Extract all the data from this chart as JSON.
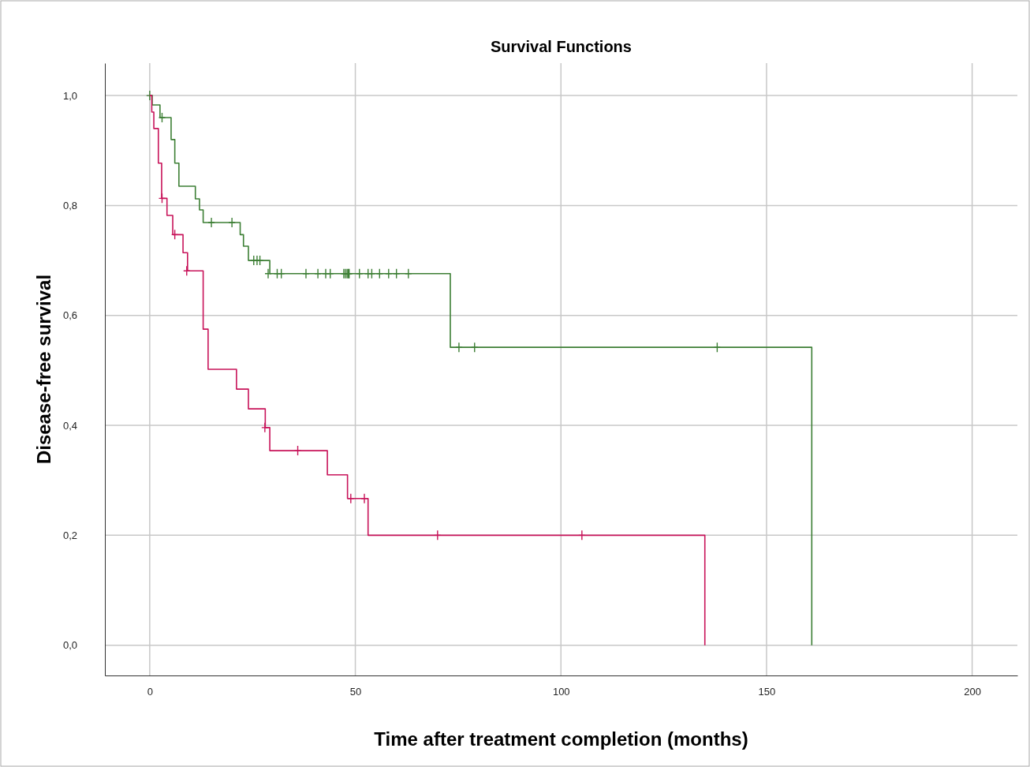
{
  "chart_data": {
    "type": "step",
    "title": "Survival Functions",
    "xlabel": "Time after treatment completion (months)",
    "ylabel": "Disease-free survival",
    "xlim": [
      -10.9,
      211
    ],
    "ylim": [
      -0.055,
      1.059
    ],
    "xticks": [
      0,
      50,
      100,
      150,
      200
    ],
    "yticks": [
      {
        "value": 0,
        "label": "0,0"
      },
      {
        "value": 0.2,
        "label": "0,2"
      },
      {
        "value": 0.4,
        "label": "0,4"
      },
      {
        "value": 0.6,
        "label": "0,6"
      },
      {
        "value": 0.8,
        "label": "0,8"
      },
      {
        "value": 1,
        "label": "1,0"
      }
    ],
    "grid": true,
    "series": [
      {
        "color": "#3d7f35",
        "x": [
          0,
          0.6,
          2.5,
          5.2,
          6.1,
          7.1,
          11.1,
          12.1,
          13,
          22,
          22.8,
          24,
          29.2,
          73.1,
          161
        ],
        "values": [
          1,
          0.983,
          0.96,
          0.92,
          0.877,
          0.835,
          0.812,
          0.792,
          0.769,
          0.747,
          0.726,
          0.7,
          0.676,
          0.542,
          0
        ]
      },
      {
        "type": "scatter",
        "marker": "cross",
        "color": "#3d7f35",
        "x": [
          0,
          3,
          15,
          20,
          25.3,
          26.1,
          26.8,
          28.8,
          31,
          32,
          38,
          40.9,
          42.8,
          43.9,
          47.2,
          47.6,
          48,
          48.3,
          48.5,
          51,
          53.1,
          54,
          55.9,
          58.1,
          60,
          62.9,
          75.2,
          79,
          138
        ],
        "values": [
          1,
          0.96,
          0.769,
          0.769,
          0.7,
          0.7,
          0.7,
          0.676,
          0.676,
          0.676,
          0.676,
          0.676,
          0.676,
          0.676,
          0.676,
          0.676,
          0.676,
          0.676,
          0.676,
          0.676,
          0.676,
          0.676,
          0.676,
          0.676,
          0.676,
          0.676,
          0.542,
          0.542,
          0.542
        ]
      },
      {
        "color": "#c8145a",
        "x": [
          0,
          0.5,
          1,
          2.1,
          2.9,
          4.2,
          5.6,
          8.1,
          9.2,
          13,
          14.2,
          21.1,
          24,
          28.1,
          29.2,
          43.2,
          48.1,
          53.1,
          135
        ],
        "values": [
          1,
          0.97,
          0.94,
          0.877,
          0.813,
          0.782,
          0.747,
          0.714,
          0.681,
          0.575,
          0.502,
          0.466,
          0.43,
          0.396,
          0.354,
          0.31,
          0.267,
          0.2,
          0
        ]
      },
      {
        "type": "scatter",
        "marker": "cross",
        "color": "#c8145a",
        "x": [
          3,
          6.1,
          9,
          28,
          36,
          48.9,
          52.2,
          70,
          105.1
        ],
        "values": [
          0.813,
          0.747,
          0.681,
          0.396,
          0.354,
          0.267,
          0.267,
          0.2,
          0.2
        ]
      }
    ]
  }
}
